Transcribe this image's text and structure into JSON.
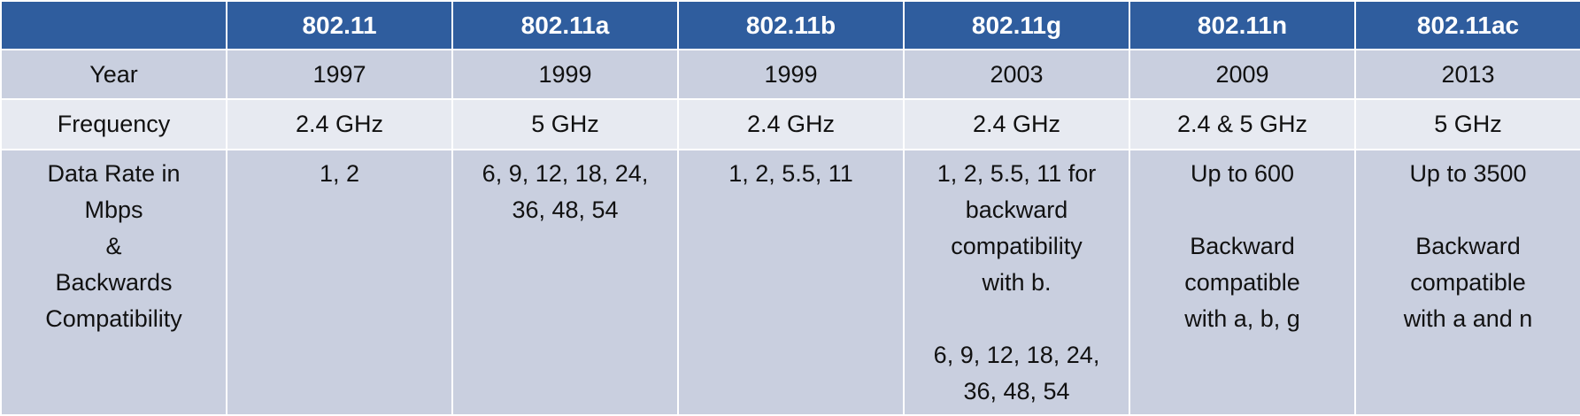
{
  "table": {
    "header": [
      "",
      "802.11",
      "802.11a",
      "802.11b",
      "802.11g",
      "802.11n",
      "802.11ac"
    ],
    "rows": [
      {
        "label": "Year",
        "cells": [
          "1997",
          "1999",
          "1999",
          "2003",
          "2009",
          "2013"
        ]
      },
      {
        "label": "Frequency",
        "cells": [
          "2.4 GHz",
          "5 GHz",
          "2.4 GHz",
          "2.4 GHz",
          "2.4 & 5 GHz",
          "5 GHz"
        ]
      },
      {
        "label_lines": [
          "Data Rate in",
          "Mbps",
          "&",
          "Backwards",
          "Compatibility"
        ],
        "cells": [
          {
            "lines": [
              "1, 2"
            ]
          },
          {
            "lines": [
              "6, 9, 12, 18, 24,",
              "36, 48, 54"
            ]
          },
          {
            "lines": [
              "1, 2, 5.5, 11"
            ]
          },
          {
            "lines": [
              "1, 2, 5.5, 11 for",
              "backward",
              "compatibility",
              "with b.",
              "",
              "6, 9, 12, 18, 24,",
              "36, 48, 54"
            ]
          },
          {
            "lines": [
              "Up to 600",
              "",
              "Backward",
              "compatible",
              "with a, b, g"
            ]
          },
          {
            "lines": [
              "Up to 3500",
              "",
              "Backward",
              "compatible",
              "with a and n"
            ]
          }
        ]
      }
    ]
  }
}
